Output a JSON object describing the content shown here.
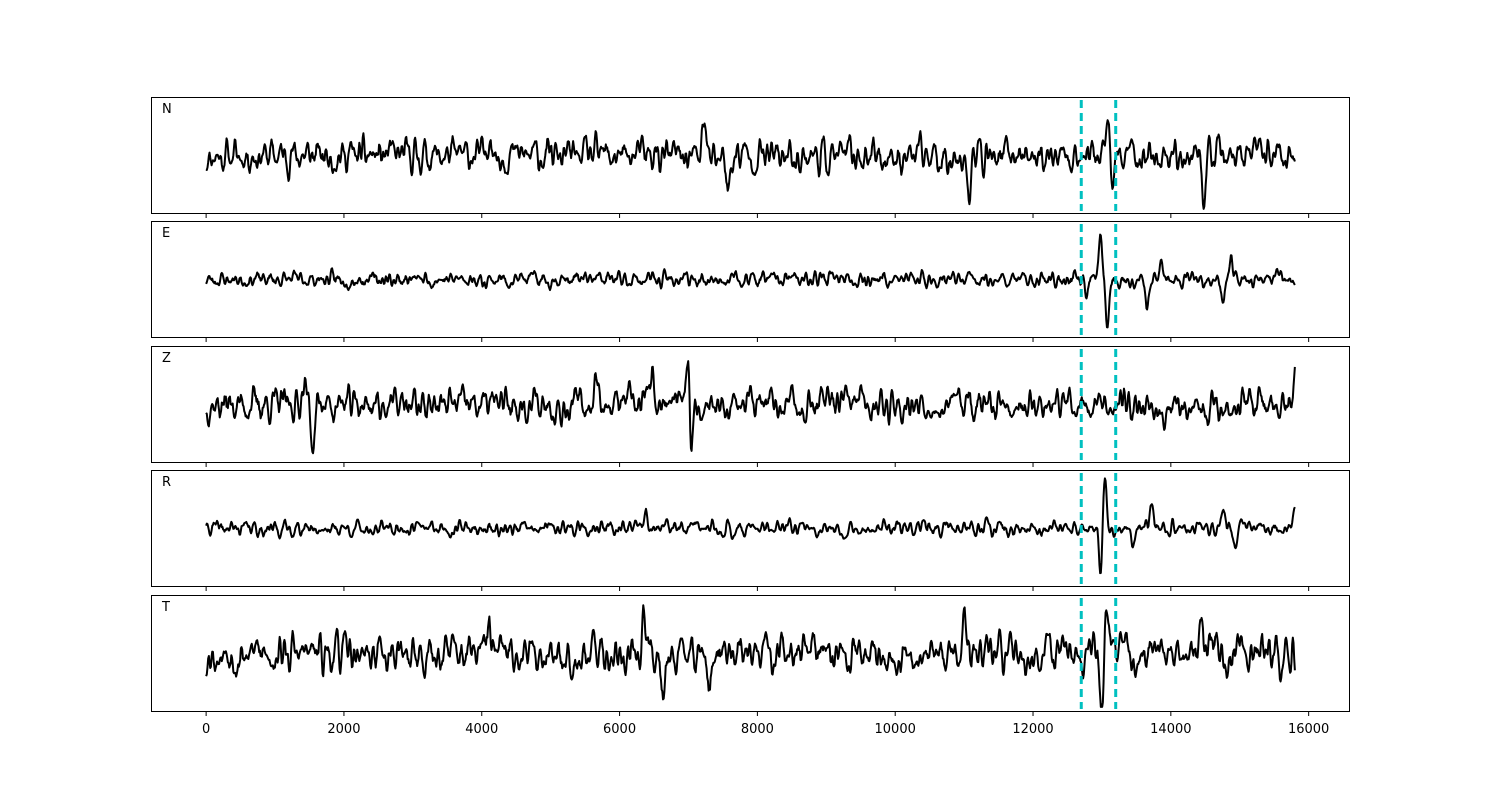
{
  "chart_data": {
    "type": "line",
    "x_ticks": [
      0,
      2000,
      4000,
      6000,
      8000,
      10000,
      12000,
      14000,
      16000
    ],
    "x_tick_labels": [
      "0",
      "2000",
      "4000",
      "6000",
      "8000",
      "10000",
      "12000",
      "14000",
      "16000"
    ],
    "xlim": [
      -800,
      16600
    ],
    "x_range": [
      0,
      15800
    ],
    "y_ticks_shown": false,
    "grid": false,
    "trace_color": "#000000",
    "marker_color": "#00c0c0",
    "vertical_markers": [
      12700,
      13200
    ],
    "panels": [
      {
        "label": "N",
        "ylim": [
          -1.15,
          1.15
        ],
        "noise_amplitude": 0.5,
        "seed": 11,
        "peaks": [
          {
            "x": 13100,
            "value": 0.95
          },
          {
            "x": 13150,
            "value": -0.95
          },
          {
            "x": 11080,
            "value": -0.9
          },
          {
            "x": 14480,
            "value": -0.85
          },
          {
            "x": 7580,
            "value": -0.8
          },
          {
            "x": 7220,
            "value": 0.65
          },
          {
            "x": 4120,
            "value": 0.55
          }
        ]
      },
      {
        "label": "E",
        "ylim": [
          -1.15,
          1.15
        ],
        "noise_amplitude": 0.22,
        "seed": 23,
        "peaks": [
          {
            "x": 12980,
            "value": 0.88
          },
          {
            "x": 13080,
            "value": -1.0
          },
          {
            "x": 14870,
            "value": 0.5
          },
          {
            "x": 14750,
            "value": -0.5
          },
          {
            "x": 13650,
            "value": -0.45
          },
          {
            "x": 13860,
            "value": 0.38
          },
          {
            "x": 12780,
            "value": -0.3
          },
          {
            "x": 15800,
            "value": -0.25
          }
        ]
      },
      {
        "label": "Z",
        "ylim": [
          -1.15,
          1.15
        ],
        "noise_amplitude": 0.5,
        "seed": 37,
        "peaks": [
          {
            "x": 1550,
            "value": -0.85
          },
          {
            "x": 7030,
            "value": -1.0
          },
          {
            "x": 7000,
            "value": 0.95
          },
          {
            "x": 5650,
            "value": 0.75
          },
          {
            "x": 6480,
            "value": 0.6
          },
          {
            "x": 1420,
            "value": 0.55
          },
          {
            "x": 15800,
            "value": 0.35
          }
        ]
      },
      {
        "label": "R",
        "ylim": [
          -1.15,
          1.15
        ],
        "noise_amplitude": 0.22,
        "seed": 41,
        "peaks": [
          {
            "x": 13040,
            "value": 1.0
          },
          {
            "x": 12980,
            "value": -0.8
          },
          {
            "x": 13450,
            "value": -0.35
          },
          {
            "x": 14940,
            "value": -0.55
          },
          {
            "x": 14760,
            "value": 0.5
          },
          {
            "x": 13720,
            "value": 0.4
          },
          {
            "x": 6390,
            "value": 0.38
          },
          {
            "x": 15800,
            "value": 0.3
          }
        ]
      },
      {
        "label": "T",
        "ylim": [
          -1.15,
          1.15
        ],
        "noise_amplitude": 0.55,
        "seed": 53,
        "peaks": [
          {
            "x": 13000,
            "value": -1.0
          },
          {
            "x": 13060,
            "value": 0.85
          },
          {
            "x": 11000,
            "value": 0.9
          },
          {
            "x": 14450,
            "value": 0.8
          },
          {
            "x": 6630,
            "value": -0.8
          },
          {
            "x": 6350,
            "value": 0.75
          },
          {
            "x": 7300,
            "value": -0.8
          },
          {
            "x": 4100,
            "value": 0.6
          }
        ]
      }
    ]
  }
}
